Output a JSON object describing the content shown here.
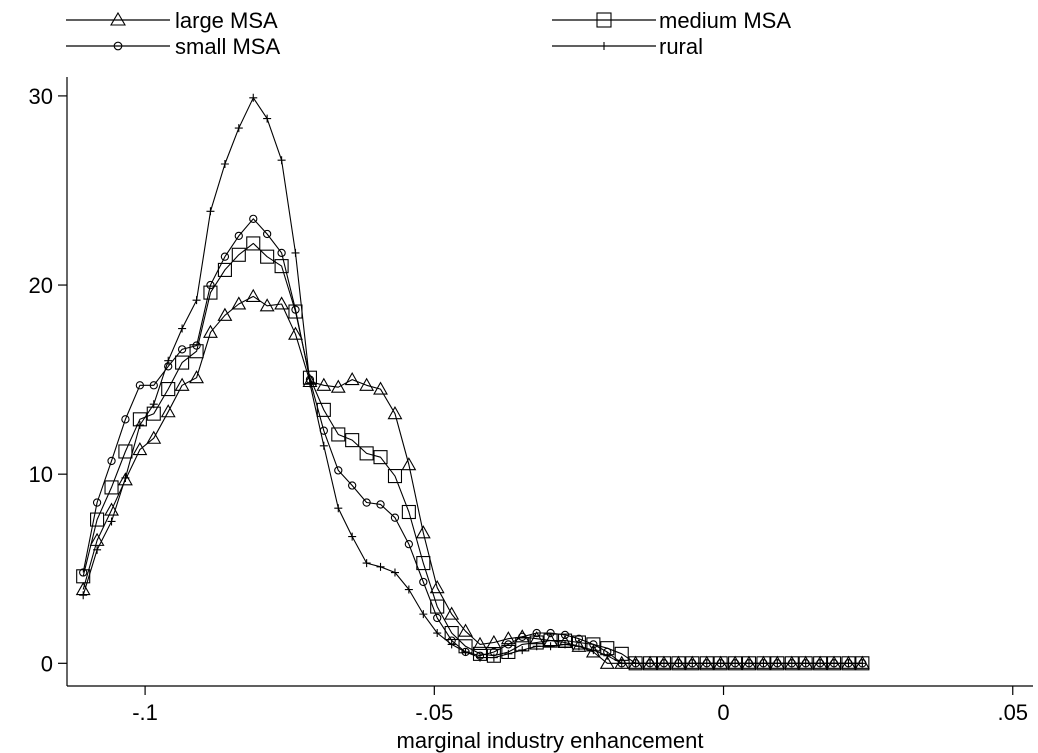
{
  "chart_data": {
    "type": "line",
    "title": "",
    "xlabel": "marginal industry enhancement",
    "ylabel": "",
    "xlim": [
      -0.1135,
      0.0535
    ],
    "ylim": [
      -1.2,
      31.0
    ],
    "xticks": [
      -0.1,
      -0.05,
      0,
      0.05
    ],
    "xtick_labels": [
      "-.1",
      "-.05",
      "0",
      ".05"
    ],
    "yticks": [
      0,
      10,
      20,
      30
    ],
    "ytick_labels": [
      "0",
      "10",
      "20",
      "30"
    ],
    "grid": false,
    "legend_position": "top",
    "x": [
      -0.1107,
      -0.1083,
      -0.1058,
      -0.1034,
      -0.1009,
      -0.0985,
      -0.096,
      -0.0936,
      -0.0911,
      -0.0887,
      -0.0862,
      -0.0838,
      -0.0813,
      -0.0789,
      -0.0764,
      -0.074,
      -0.0715,
      -0.0691,
      -0.0666,
      -0.0642,
      -0.0617,
      -0.0593,
      -0.0568,
      -0.0544,
      -0.0519,
      -0.0495,
      -0.047,
      -0.0446,
      -0.0421,
      -0.0397,
      -0.0372,
      -0.0348,
      -0.0323,
      -0.0299,
      -0.0274,
      -0.025,
      -0.0225,
      -0.0201,
      -0.0176,
      -0.0152,
      -0.0127,
      -0.0103,
      -0.0078,
      -0.0054,
      -0.0029,
      -0.0005,
      0.002,
      0.0044,
      0.0069,
      0.0093,
      0.0118,
      0.0142,
      0.0167,
      0.0191,
      0.0216,
      0.024
    ],
    "series": [
      {
        "name": "large MSA",
        "marker": "triangle",
        "values": [
          3.9,
          6.5,
          8.1,
          9.7,
          11.3,
          11.9,
          13.3,
          14.7,
          15.1,
          17.5,
          18.4,
          19.0,
          19.4,
          18.9,
          19.0,
          17.4,
          14.9,
          14.7,
          14.6,
          15.0,
          14.7,
          14.5,
          13.2,
          10.5,
          6.9,
          4.0,
          2.6,
          1.7,
          1.0,
          1.1,
          1.3,
          1.4,
          1.3,
          1.2,
          1.1,
          0.9,
          0.6,
          0.0,
          0.0,
          0.0,
          0.0,
          0.0,
          0.0,
          0.0,
          0.0,
          0.0,
          0.0,
          0.0,
          0.0,
          0.0,
          0.0,
          0.0,
          0.0,
          0.0,
          0.0,
          0.0
        ]
      },
      {
        "name": "medium MSA",
        "marker": "square",
        "values": [
          4.6,
          7.6,
          9.3,
          11.2,
          12.9,
          13.2,
          14.5,
          15.9,
          16.5,
          19.6,
          20.8,
          21.6,
          22.2,
          21.5,
          21.0,
          18.6,
          15.1,
          13.4,
          12.1,
          11.8,
          11.1,
          10.9,
          9.9,
          8.0,
          5.3,
          3.0,
          1.6,
          0.9,
          0.5,
          0.4,
          0.6,
          1.0,
          1.1,
          1.2,
          1.2,
          1.1,
          1.0,
          0.8,
          0.5,
          0.0,
          0.0,
          0.0,
          0.0,
          0.0,
          0.0,
          0.0,
          0.0,
          0.0,
          0.0,
          0.0,
          0.0,
          0.0,
          0.0,
          0.0,
          0.0,
          0.0
        ]
      },
      {
        "name": "small MSA",
        "marker": "circle",
        "values": [
          4.8,
          8.5,
          10.7,
          12.9,
          14.7,
          14.7,
          15.7,
          16.6,
          16.8,
          20.0,
          21.5,
          22.6,
          23.5,
          22.7,
          21.7,
          18.7,
          15.0,
          12.3,
          10.2,
          9.4,
          8.5,
          8.4,
          7.7,
          6.3,
          4.3,
          2.4,
          1.2,
          0.6,
          0.4,
          0.6,
          1.0,
          1.4,
          1.6,
          1.6,
          1.5,
          1.3,
          1.0,
          0.6,
          0.0,
          0.0,
          0.0,
          0.0,
          0.0,
          0.0,
          0.0,
          0.0,
          0.0,
          0.0,
          0.0,
          0.0,
          0.0,
          0.0,
          0.0,
          0.0,
          0.0,
          0.0
        ]
      },
      {
        "name": "rural",
        "marker": "plus",
        "values": [
          3.6,
          6.0,
          7.5,
          9.8,
          12.6,
          13.7,
          16.0,
          17.7,
          19.2,
          23.9,
          26.4,
          28.3,
          29.9,
          28.8,
          26.6,
          21.7,
          14.8,
          11.5,
          8.2,
          6.7,
          5.3,
          5.1,
          4.8,
          3.9,
          2.6,
          1.6,
          1.0,
          0.6,
          0.3,
          0.3,
          0.5,
          0.7,
          0.9,
          0.9,
          1.0,
          0.9,
          0.7,
          0.4,
          0.0,
          0.0,
          0.0,
          0.0,
          0.0,
          0.0,
          0.0,
          0.0,
          0.0,
          0.0,
          0.0,
          0.0,
          0.0,
          0.0,
          0.0,
          0.0,
          0.0,
          0.0
        ]
      }
    ]
  }
}
